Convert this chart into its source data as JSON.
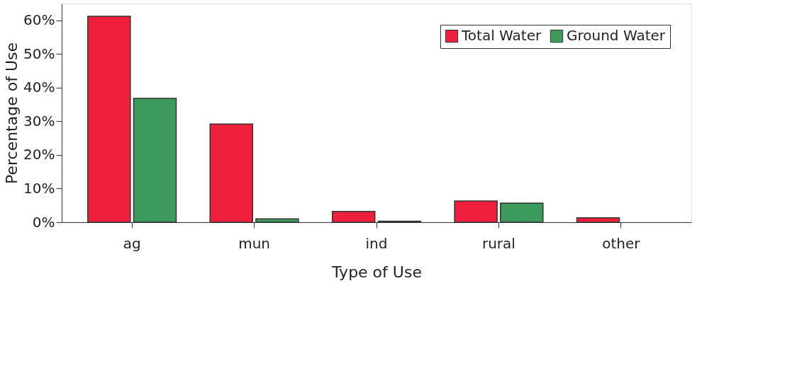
{
  "chart_data": {
    "type": "bar",
    "xlabel": "Type of Use",
    "ylabel": "Percentage of Use",
    "categories": [
      "ag",
      "mun",
      "ind",
      "rural",
      "other"
    ],
    "series": [
      {
        "name": "Total Water",
        "color": "#f0203c",
        "values": [
          61.2,
          29.2,
          3.2,
          6.3,
          1.3
        ]
      },
      {
        "name": "Ground Water",
        "color": "#3c9a5c",
        "values": [
          36.8,
          1.0,
          0.3,
          5.7,
          null
        ]
      }
    ],
    "ylim": [
      0,
      65
    ],
    "yticks": [
      {
        "value": 0,
        "label": "0%"
      },
      {
        "value": 10,
        "label": "10%"
      },
      {
        "value": 20,
        "label": "20%"
      },
      {
        "value": 30,
        "label": "30%"
      },
      {
        "value": 40,
        "label": "40%"
      },
      {
        "value": 50,
        "label": "50%"
      },
      {
        "value": 60,
        "label": "60%"
      }
    ],
    "legend": "top right",
    "grid": false
  }
}
